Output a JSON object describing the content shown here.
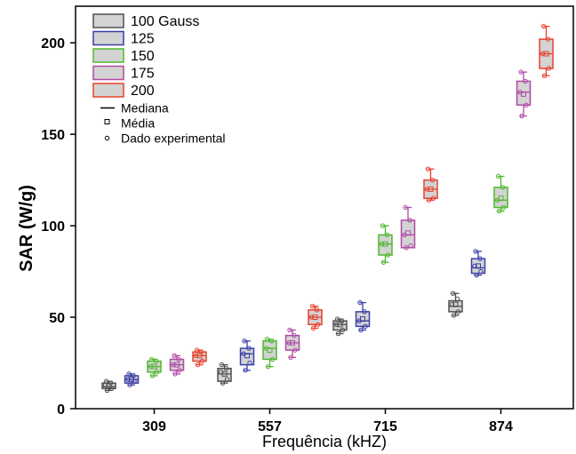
{
  "chart_data": {
    "type": "box",
    "xlabel": "Frequência (kHZ)",
    "ylabel": "SAR (W/g)",
    "categories": [
      "309",
      "557",
      "715",
      "874"
    ],
    "ylim": [
      0,
      220
    ],
    "yticks": [
      0,
      50,
      100,
      150,
      200
    ],
    "legend_position": "top-left",
    "legend_extra": [
      "Mediana",
      "Média",
      "Dado experimental"
    ],
    "series": [
      {
        "name": "100 Gauss",
        "color": "#505050",
        "boxes": [
          {
            "whisker_low": 10,
            "q1": 11,
            "median": 12,
            "q3": 14,
            "whisker_high": 15,
            "mean": 12.5,
            "points": [
              10,
              11,
              13,
              14,
              15
            ]
          },
          {
            "whisker_low": 14,
            "q1": 15,
            "median": 19,
            "q3": 22,
            "whisker_high": 24,
            "mean": 19,
            "points": [
              14,
              16,
              20,
              22,
              24
            ]
          },
          {
            "whisker_low": 41,
            "q1": 43,
            "median": 46,
            "q3": 48,
            "whisker_high": 49,
            "mean": 46,
            "points": [
              41,
              43,
              46,
              48,
              49
            ]
          },
          {
            "whisker_low": 51,
            "q1": 53,
            "median": 56,
            "q3": 59,
            "whisker_high": 63,
            "mean": 57,
            "points": [
              51,
              53,
              57,
              60,
              63
            ]
          }
        ]
      },
      {
        "name": "125",
        "color": "#3b3fa8",
        "boxes": [
          {
            "whisker_low": 13,
            "q1": 14,
            "median": 16,
            "q3": 18,
            "whisker_high": 19,
            "mean": 16,
            "points": [
              13,
              15,
              16,
              18,
              19
            ]
          },
          {
            "whisker_low": 21,
            "q1": 24,
            "median": 30,
            "q3": 33,
            "whisker_high": 37,
            "mean": 29,
            "points": [
              21,
              25,
              30,
              33,
              37
            ]
          },
          {
            "whisker_low": 43,
            "q1": 45,
            "median": 48,
            "q3": 53,
            "whisker_high": 58,
            "mean": 49,
            "points": [
              43,
              45,
              48,
              53,
              58
            ]
          },
          {
            "whisker_low": 73,
            "q1": 74,
            "median": 77,
            "q3": 82,
            "whisker_high": 86,
            "mean": 78,
            "points": [
              73,
              75,
              78,
              82,
              86
            ]
          }
        ]
      },
      {
        "name": "150",
        "color": "#4fb82e",
        "boxes": [
          {
            "whisker_low": 18,
            "q1": 20,
            "median": 23,
            "q3": 26,
            "whisker_high": 27,
            "mean": 23,
            "points": [
              18,
              20,
              23,
              26,
              27
            ]
          },
          {
            "whisker_low": 23,
            "q1": 27,
            "median": 33,
            "q3": 37,
            "whisker_high": 38,
            "mean": 32,
            "points": [
              23,
              27,
              33,
              37,
              38
            ]
          },
          {
            "whisker_low": 80,
            "q1": 84,
            "median": 90,
            "q3": 95,
            "whisker_high": 100,
            "mean": 90,
            "points": [
              80,
              84,
              90,
              95,
              100
            ]
          },
          {
            "whisker_low": 108,
            "q1": 110,
            "median": 114,
            "q3": 121,
            "whisker_high": 127,
            "mean": 115,
            "points": [
              108,
              110,
              114,
              121,
              127
            ]
          }
        ]
      },
      {
        "name": "175",
        "color": "#b04aa6",
        "boxes": [
          {
            "whisker_low": 19,
            "q1": 21,
            "median": 24,
            "q3": 27,
            "whisker_high": 29,
            "mean": 24,
            "points": [
              19,
              21,
              24,
              27,
              29
            ]
          },
          {
            "whisker_low": 28,
            "q1": 32,
            "median": 36,
            "q3": 40,
            "whisker_high": 43,
            "mean": 36,
            "points": [
              28,
              32,
              36,
              40,
              43
            ]
          },
          {
            "whisker_low": 88,
            "q1": 88,
            "median": 95,
            "q3": 103,
            "whisker_high": 110,
            "mean": 96,
            "points": [
              88,
              89,
              95,
              103,
              110
            ]
          },
          {
            "whisker_low": 160,
            "q1": 166,
            "median": 173,
            "q3": 179,
            "whisker_high": 184,
            "mean": 172,
            "points": [
              160,
              166,
              173,
              179,
              184
            ]
          }
        ]
      },
      {
        "name": "200",
        "color": "#e8412d",
        "boxes": [
          {
            "whisker_low": 24,
            "q1": 26,
            "median": 29,
            "q3": 31,
            "whisker_high": 32,
            "mean": 29,
            "points": [
              24,
              26,
              29,
              31,
              32
            ]
          },
          {
            "whisker_low": 44,
            "q1": 46,
            "median": 50,
            "q3": 54,
            "whisker_high": 56,
            "mean": 50,
            "points": [
              44,
              46,
              50,
              54,
              56
            ]
          },
          {
            "whisker_low": 114,
            "q1": 115,
            "median": 120,
            "q3": 125,
            "whisker_high": 131,
            "mean": 120,
            "points": [
              114,
              115,
              120,
              125,
              131
            ]
          },
          {
            "whisker_low": 182,
            "q1": 186,
            "median": 194,
            "q3": 202,
            "whisker_high": 209,
            "mean": 194,
            "points": [
              182,
              186,
              194,
              202,
              209
            ]
          }
        ]
      }
    ]
  }
}
